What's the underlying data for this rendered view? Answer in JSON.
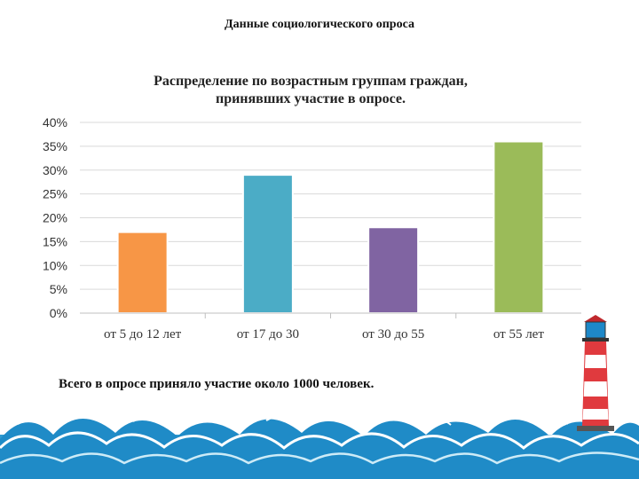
{
  "slide_title": "Данные социологического опроса",
  "note": "Всего в опросе приняло участие около 1000 человек.",
  "decorations": {
    "waves": "sea-waves",
    "lighthouse": "lighthouse-icon"
  },
  "chart_data": {
    "type": "bar",
    "title": "Распределение по возрастным группам граждан, принявших участие в опросе.",
    "categories": [
      "от 5 до 12 лет",
      "от 17 до 30",
      "от 30 до 55",
      "от 55 лет"
    ],
    "values": [
      17,
      29,
      18,
      36
    ],
    "colors": [
      "#F79646",
      "#4BACC6",
      "#8064A2",
      "#9BBB59"
    ],
    "ylim": [
      0,
      40
    ],
    "yticks": [
      "0%",
      "5%",
      "10%",
      "15%",
      "20%",
      "25%",
      "30%",
      "35%",
      "40%"
    ],
    "grid": true,
    "xlabel": "",
    "ylabel": ""
  }
}
